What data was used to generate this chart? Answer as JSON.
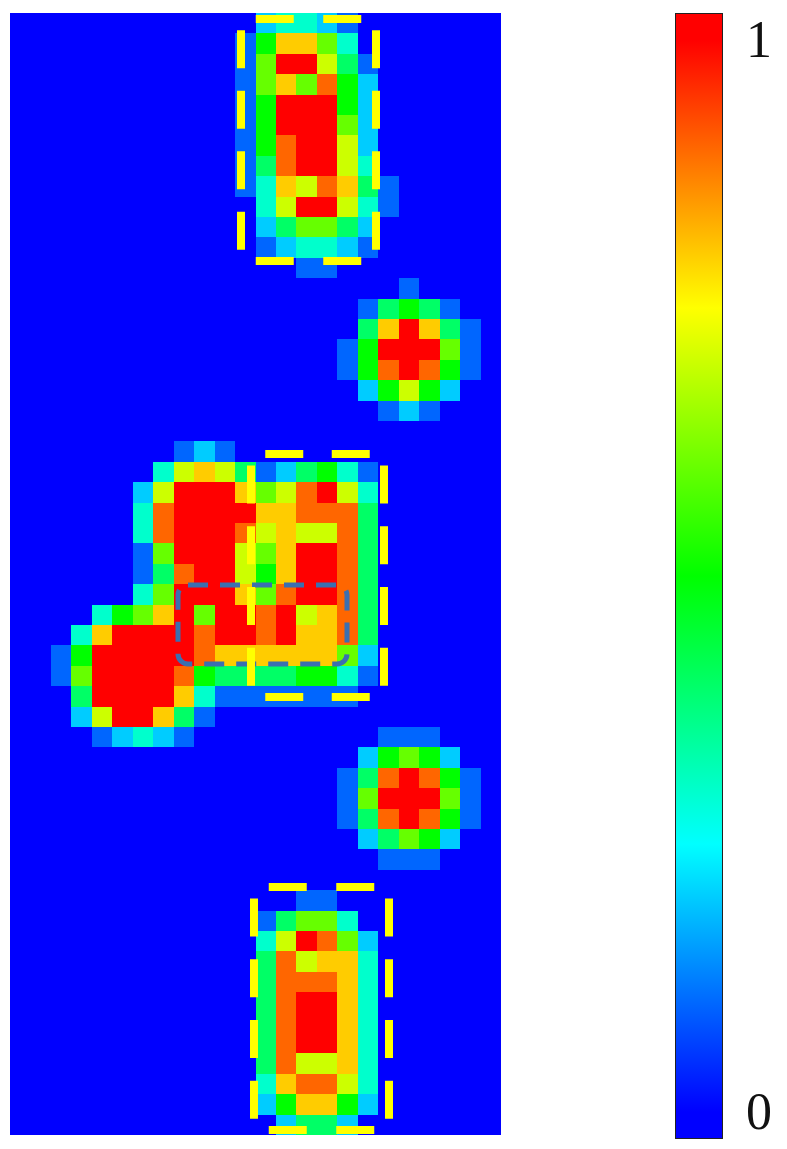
{
  "chart_data": {
    "type": "heatmap",
    "categories": [
      null,
      null,
      null,
      null,
      null,
      null,
      null,
      null,
      null,
      null,
      null,
      null,
      null,
      null,
      null,
      null,
      null,
      null,
      null,
      null,
      null,
      null,
      null,
      null
    ],
    "y_categories": [
      null,
      null,
      null,
      null,
      null,
      null,
      null,
      null,
      null,
      null,
      null,
      null,
      null,
      null,
      null,
      null,
      null,
      null,
      null,
      null,
      null,
      null,
      null,
      null,
      null,
      null,
      null,
      null,
      null,
      null,
      null,
      null,
      null,
      null,
      null,
      null,
      null,
      null,
      null,
      null,
      null,
      null,
      null,
      null,
      null,
      null,
      null,
      null,
      null,
      null,
      null,
      null,
      null,
      null,
      null
    ],
    "cells": [
      [
        0,
        0,
        0,
        0,
        0,
        0,
        0,
        0,
        0,
        0,
        0,
        0,
        0.2,
        0.3,
        0.3,
        0.2,
        0.1,
        0,
        0,
        0,
        0,
        0,
        0,
        0
      ],
      [
        0,
        0,
        0,
        0,
        0,
        0,
        0,
        0,
        0,
        0,
        0,
        0.1,
        0.5,
        0.8,
        0.8,
        0.6,
        0.3,
        0,
        0,
        0,
        0,
        0,
        0,
        0
      ],
      [
        0,
        0,
        0,
        0,
        0,
        0,
        0,
        0,
        0,
        0,
        0,
        0.1,
        0.6,
        1,
        1,
        0.7,
        0.4,
        0.1,
        0,
        0,
        0,
        0,
        0,
        0
      ],
      [
        0,
        0,
        0,
        0,
        0,
        0,
        0,
        0,
        0,
        0,
        0,
        0.1,
        0.6,
        0.8,
        0.6,
        0.9,
        0.5,
        0.2,
        0,
        0,
        0,
        0,
        0,
        0
      ],
      [
        0,
        0,
        0,
        0,
        0,
        0,
        0,
        0,
        0,
        0,
        0,
        0.1,
        0.5,
        1,
        1,
        1,
        0.5,
        0.2,
        0,
        0,
        0,
        0,
        0,
        0
      ],
      [
        0,
        0,
        0,
        0,
        0,
        0,
        0,
        0,
        0,
        0,
        0,
        0.1,
        0.5,
        1,
        1,
        1,
        0.6,
        0.2,
        0,
        0,
        0,
        0,
        0,
        0
      ],
      [
        0,
        0,
        0,
        0,
        0,
        0,
        0,
        0,
        0,
        0,
        0,
        0.1,
        0.5,
        0.9,
        1,
        1,
        0.7,
        0.2,
        0,
        0,
        0,
        0,
        0,
        0
      ],
      [
        0,
        0,
        0,
        0,
        0,
        0,
        0,
        0,
        0,
        0,
        0,
        0.1,
        0.4,
        0.9,
        1,
        1,
        0.7,
        0.3,
        0,
        0,
        0,
        0,
        0,
        0
      ],
      [
        0,
        0,
        0,
        0,
        0,
        0,
        0,
        0,
        0,
        0,
        0,
        0.1,
        0.3,
        0.8,
        0.7,
        0.9,
        0.8,
        0.4,
        0.1,
        0,
        0,
        0,
        0,
        0
      ],
      [
        0,
        0,
        0,
        0,
        0,
        0,
        0,
        0,
        0,
        0,
        0,
        0,
        0.3,
        0.7,
        1,
        1,
        0.7,
        0.3,
        0.1,
        0,
        0,
        0,
        0,
        0
      ],
      [
        0,
        0,
        0,
        0,
        0,
        0,
        0,
        0,
        0,
        0,
        0,
        0,
        0.2,
        0.4,
        0.6,
        0.6,
        0.4,
        0.2,
        0,
        0,
        0,
        0,
        0,
        0
      ],
      [
        0,
        0,
        0,
        0,
        0,
        0,
        0,
        0,
        0,
        0,
        0,
        0,
        0.1,
        0.2,
        0.3,
        0.3,
        0.2,
        0.1,
        0,
        0,
        0,
        0,
        0,
        0
      ],
      [
        0,
        0,
        0,
        0,
        0,
        0,
        0,
        0,
        0,
        0,
        0,
        0,
        0,
        0,
        0.1,
        0.1,
        0,
        0,
        0,
        0,
        0,
        0,
        0,
        0
      ],
      [
        0,
        0,
        0,
        0,
        0,
        0,
        0,
        0,
        0,
        0,
        0,
        0,
        0,
        0,
        0,
        0,
        0,
        0,
        0,
        0.1,
        0,
        0,
        0,
        0
      ],
      [
        0,
        0,
        0,
        0,
        0,
        0,
        0,
        0,
        0,
        0,
        0,
        0,
        0,
        0,
        0,
        0,
        0,
        0.1,
        0.4,
        0.5,
        0.4,
        0.1,
        0,
        0
      ],
      [
        0,
        0,
        0,
        0,
        0,
        0,
        0,
        0,
        0,
        0,
        0,
        0,
        0,
        0,
        0,
        0,
        0,
        0.4,
        0.8,
        1,
        0.8,
        0.4,
        0.1,
        0
      ],
      [
        0,
        0,
        0,
        0,
        0,
        0,
        0,
        0,
        0,
        0,
        0,
        0,
        0,
        0,
        0,
        0,
        0.1,
        0.5,
        1,
        1,
        1,
        0.6,
        0.1,
        0
      ],
      [
        0,
        0,
        0,
        0,
        0,
        0,
        0,
        0,
        0,
        0,
        0,
        0,
        0,
        0,
        0,
        0,
        0.1,
        0.5,
        0.9,
        1,
        0.9,
        0.5,
        0.1,
        0
      ],
      [
        0,
        0,
        0,
        0,
        0,
        0,
        0,
        0,
        0,
        0,
        0,
        0,
        0,
        0,
        0,
        0,
        0,
        0.2,
        0.5,
        0.7,
        0.5,
        0.2,
        0,
        0
      ],
      [
        0,
        0,
        0,
        0,
        0,
        0,
        0,
        0,
        0,
        0,
        0,
        0,
        0,
        0,
        0,
        0,
        0,
        0,
        0.1,
        0.2,
        0.1,
        0,
        0,
        0
      ],
      [
        0,
        0,
        0,
        0,
        0,
        0,
        0,
        0,
        0,
        0,
        0,
        0,
        0,
        0,
        0,
        0,
        0,
        0,
        0,
        0,
        0,
        0,
        0,
        0
      ],
      [
        0,
        0,
        0,
        0,
        0,
        0,
        0,
        0,
        0.1,
        0.2,
        0.1,
        0,
        0,
        0,
        0,
        0,
        0,
        0,
        0,
        0,
        0,
        0,
        0,
        0
      ],
      [
        0,
        0,
        0,
        0,
        0,
        0,
        0,
        0.3,
        0.7,
        0.8,
        0.7,
        0.4,
        0.1,
        0.2,
        0.4,
        0.5,
        0.3,
        0.1,
        0,
        0,
        0,
        0,
        0,
        0
      ],
      [
        0,
        0,
        0,
        0,
        0,
        0,
        0.2,
        0.7,
        1,
        1,
        1,
        0.8,
        0.6,
        0.7,
        0.9,
        1,
        0.7,
        0.3,
        0,
        0,
        0,
        0,
        0,
        0
      ],
      [
        0,
        0,
        0,
        0,
        0,
        0,
        0.3,
        0.9,
        1,
        1,
        1,
        1,
        0.8,
        0.8,
        0.9,
        0.9,
        0.9,
        0.4,
        0,
        0,
        0,
        0,
        0,
        0
      ],
      [
        0,
        0,
        0,
        0,
        0,
        0,
        0.3,
        0.9,
        1,
        1,
        1,
        0.9,
        0.7,
        0.8,
        0.7,
        0.7,
        0.9,
        0.4,
        0,
        0,
        0,
        0,
        0,
        0
      ],
      [
        0,
        0,
        0,
        0,
        0,
        0,
        0.1,
        0.6,
        1,
        1,
        1,
        0.7,
        0.6,
        0.8,
        1,
        1,
        0.9,
        0.4,
        0,
        0,
        0,
        0,
        0,
        0
      ],
      [
        0,
        0,
        0,
        0,
        0,
        0,
        0.1,
        0.4,
        0.9,
        1,
        1,
        0.7,
        0.5,
        0.8,
        1,
        1,
        0.9,
        0.4,
        0,
        0,
        0,
        0,
        0,
        0
      ],
      [
        0,
        0,
        0,
        0,
        0,
        0,
        0.3,
        0.6,
        1,
        1,
        1,
        0.8,
        0.6,
        0.9,
        1,
        1,
        0.9,
        0.4,
        0,
        0,
        0,
        0,
        0,
        0
      ],
      [
        0,
        0,
        0,
        0,
        0.3,
        0.5,
        0.6,
        0.8,
        1,
        0.6,
        1,
        1,
        0.9,
        1,
        0.7,
        0.8,
        0.9,
        0.4,
        0,
        0,
        0,
        0,
        0,
        0
      ],
      [
        0,
        0,
        0,
        0.3,
        0.8,
        1,
        1,
        1,
        1,
        0.9,
        1,
        1,
        0.9,
        1,
        0.8,
        0.8,
        0.9,
        0.4,
        0,
        0,
        0,
        0,
        0,
        0
      ],
      [
        0,
        0,
        0.1,
        0.5,
        1,
        1,
        1,
        1,
        1,
        0.9,
        0.8,
        0.8,
        0.8,
        0.8,
        0.8,
        0.8,
        0.6,
        0.2,
        0,
        0,
        0,
        0,
        0,
        0
      ],
      [
        0,
        0,
        0.1,
        0.6,
        1,
        1,
        1,
        1,
        0.9,
        0.5,
        0.4,
        0.4,
        0.4,
        0.4,
        0.5,
        0.5,
        0.3,
        0.1,
        0,
        0,
        0,
        0,
        0,
        0
      ],
      [
        0,
        0,
        0,
        0.4,
        1,
        1,
        1,
        1,
        0.8,
        0.3,
        0.1,
        0.1,
        0.1,
        0.1,
        0.1,
        0.1,
        0.1,
        0,
        0,
        0,
        0,
        0,
        0,
        0
      ],
      [
        0,
        0,
        0,
        0.2,
        0.7,
        1,
        1,
        0.8,
        0.4,
        0.1,
        0,
        0,
        0,
        0,
        0,
        0,
        0,
        0,
        0,
        0,
        0,
        0,
        0,
        0
      ],
      [
        0,
        0,
        0,
        0,
        0.1,
        0.2,
        0.3,
        0.2,
        0.1,
        0,
        0,
        0,
        0,
        0,
        0,
        0,
        0,
        0,
        0.1,
        0.1,
        0.1,
        0,
        0,
        0
      ],
      [
        0,
        0,
        0,
        0,
        0,
        0,
        0,
        0,
        0,
        0,
        0,
        0,
        0,
        0,
        0,
        0,
        0,
        0.2,
        0.5,
        0.6,
        0.5,
        0.2,
        0,
        0
      ],
      [
        0,
        0,
        0,
        0,
        0,
        0,
        0,
        0,
        0,
        0,
        0,
        0,
        0,
        0,
        0,
        0,
        0.1,
        0.4,
        0.9,
        1,
        0.9,
        0.5,
        0.1,
        0
      ],
      [
        0,
        0,
        0,
        0,
        0,
        0,
        0,
        0,
        0,
        0,
        0,
        0,
        0,
        0,
        0,
        0,
        0.1,
        0.6,
        1,
        1,
        1,
        0.6,
        0.1,
        0
      ],
      [
        0,
        0,
        0,
        0,
        0,
        0,
        0,
        0,
        0,
        0,
        0,
        0,
        0,
        0,
        0,
        0,
        0.1,
        0.4,
        0.9,
        1,
        0.9,
        0.5,
        0.1,
        0
      ],
      [
        0,
        0,
        0,
        0,
        0,
        0,
        0,
        0,
        0,
        0,
        0,
        0,
        0,
        0,
        0,
        0,
        0,
        0.2,
        0.4,
        0.6,
        0.5,
        0.2,
        0,
        0
      ],
      [
        0,
        0,
        0,
        0,
        0,
        0,
        0,
        0,
        0,
        0,
        0,
        0,
        0,
        0,
        0,
        0,
        0,
        0,
        0.1,
        0.1,
        0.1,
        0,
        0,
        0
      ],
      [
        0,
        0,
        0,
        0,
        0,
        0,
        0,
        0,
        0,
        0,
        0,
        0,
        0,
        0,
        0,
        0,
        0,
        0,
        0,
        0,
        0,
        0,
        0,
        0
      ],
      [
        0,
        0,
        0,
        0,
        0,
        0,
        0,
        0,
        0,
        0,
        0,
        0,
        0,
        0,
        0.1,
        0.1,
        0,
        0,
        0,
        0,
        0,
        0,
        0,
        0
      ],
      [
        0,
        0,
        0,
        0,
        0,
        0,
        0,
        0,
        0,
        0,
        0,
        0,
        0.1,
        0.4,
        0.6,
        0.6,
        0.3,
        0,
        0,
        0,
        0,
        0,
        0,
        0
      ],
      [
        0,
        0,
        0,
        0,
        0,
        0,
        0,
        0,
        0,
        0,
        0,
        0,
        0.3,
        0.7,
        1,
        0.9,
        0.6,
        0.2,
        0,
        0,
        0,
        0,
        0,
        0
      ],
      [
        0,
        0,
        0,
        0,
        0,
        0,
        0,
        0,
        0,
        0,
        0,
        0,
        0.4,
        0.9,
        0.7,
        0.8,
        0.8,
        0.3,
        0,
        0,
        0,
        0,
        0,
        0
      ],
      [
        0,
        0,
        0,
        0,
        0,
        0,
        0,
        0,
        0,
        0,
        0,
        0,
        0.4,
        0.9,
        0.9,
        0.9,
        0.8,
        0.3,
        0,
        0,
        0,
        0,
        0,
        0
      ],
      [
        0,
        0,
        0,
        0,
        0,
        0,
        0,
        0,
        0,
        0,
        0,
        0,
        0.4,
        0.9,
        1,
        1,
        0.8,
        0.3,
        0,
        0,
        0,
        0,
        0,
        0
      ],
      [
        0,
        0,
        0,
        0,
        0,
        0,
        0,
        0,
        0,
        0,
        0,
        0,
        0.4,
        0.9,
        1,
        1,
        0.8,
        0.3,
        0,
        0,
        0,
        0,
        0,
        0
      ],
      [
        0,
        0,
        0,
        0,
        0,
        0,
        0,
        0,
        0,
        0,
        0,
        0,
        0.4,
        0.9,
        1,
        1,
        0.8,
        0.3,
        0,
        0,
        0,
        0,
        0,
        0
      ],
      [
        0,
        0,
        0,
        0,
        0,
        0,
        0,
        0,
        0,
        0,
        0,
        0,
        0.4,
        0.9,
        0.7,
        0.7,
        0.8,
        0.3,
        0,
        0,
        0,
        0,
        0,
        0
      ],
      [
        0,
        0,
        0,
        0,
        0,
        0,
        0,
        0,
        0,
        0,
        0,
        0,
        0.3,
        0.8,
        0.9,
        0.9,
        0.7,
        0.3,
        0,
        0,
        0,
        0,
        0,
        0
      ],
      [
        0,
        0,
        0,
        0,
        0,
        0,
        0,
        0,
        0,
        0,
        0,
        0,
        0.2,
        0.5,
        0.8,
        0.8,
        0.5,
        0.2,
        0,
        0,
        0,
        0,
        0,
        0
      ],
      [
        0,
        0,
        0,
        0,
        0,
        0,
        0,
        0,
        0,
        0,
        0,
        0,
        0,
        0.2,
        0.4,
        0.4,
        0.2,
        0,
        0,
        0,
        0,
        0,
        0,
        0
      ]
    ],
    "clim": [
      0,
      1
    ],
    "cticks": [
      0,
      1
    ]
  }
}
